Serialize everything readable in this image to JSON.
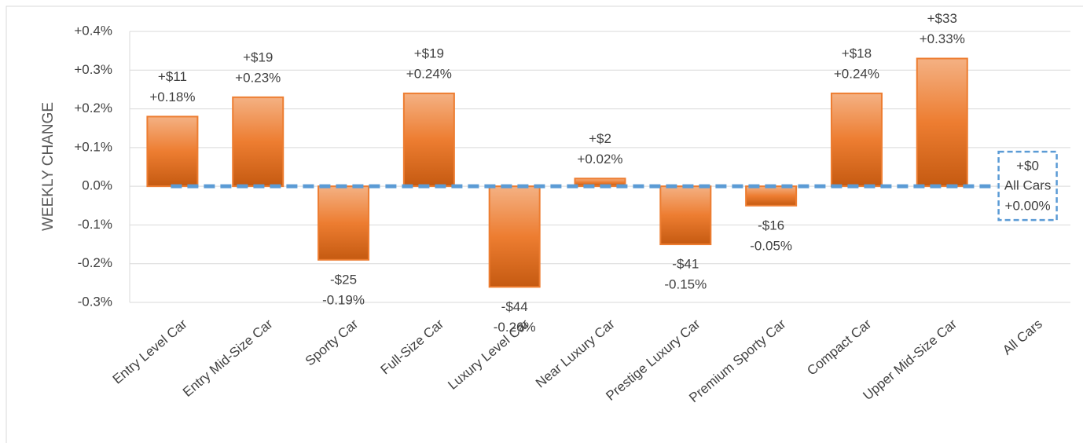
{
  "chart_data": {
    "type": "bar",
    "y_label": "WEEKLY CHANGE",
    "categories": [
      "Entry Level Car",
      "Entry Mid-Size Car",
      "Sporty Car",
      "Full-Size Car",
      "Luxury Level Car",
      "Near Luxury Car",
      "Prestige Luxury Car",
      "Premium Sporty Car",
      "Compact Car",
      "Upper Mid-Size Car",
      "All Cars"
    ],
    "values": [
      0.18,
      0.23,
      -0.19,
      0.24,
      -0.26,
      0.02,
      -0.15,
      -0.05,
      0.24,
      0.33,
      0
    ],
    "value_labels": [
      "+0.18%",
      "+0.23%",
      "-0.19%",
      "+0.24%",
      "-0.26%",
      "+0.02%",
      "-0.15%",
      "-0.05%",
      "+0.24%",
      "+0.33%",
      "+0.00%"
    ],
    "dollar_labels": [
      "+$11",
      "+$19",
      "-$25",
      "+$19",
      "-$44",
      "+$2",
      "-$41",
      "-$16",
      "+$18",
      "+$33",
      "+$0"
    ],
    "color": "#ed7d31",
    "reference_color": "#5b9bd5",
    "ylim": [
      -0.3,
      0.4
    ],
    "yticks": [
      {
        "value": -0.3,
        "label": "-0.3%"
      },
      {
        "value": -0.2,
        "label": "-0.2%"
      },
      {
        "value": -0.1,
        "label": "-0.1%"
      },
      {
        "value": 0,
        "label": "0.0%"
      },
      {
        "value": 0.1,
        "label": "+0.1%"
      },
      {
        "value": 0.2,
        "label": "+0.2%"
      },
      {
        "value": 0.3,
        "label": "+0.3%"
      },
      {
        "value": 0.4,
        "label": "+0.4%"
      }
    ],
    "grid": true
  }
}
